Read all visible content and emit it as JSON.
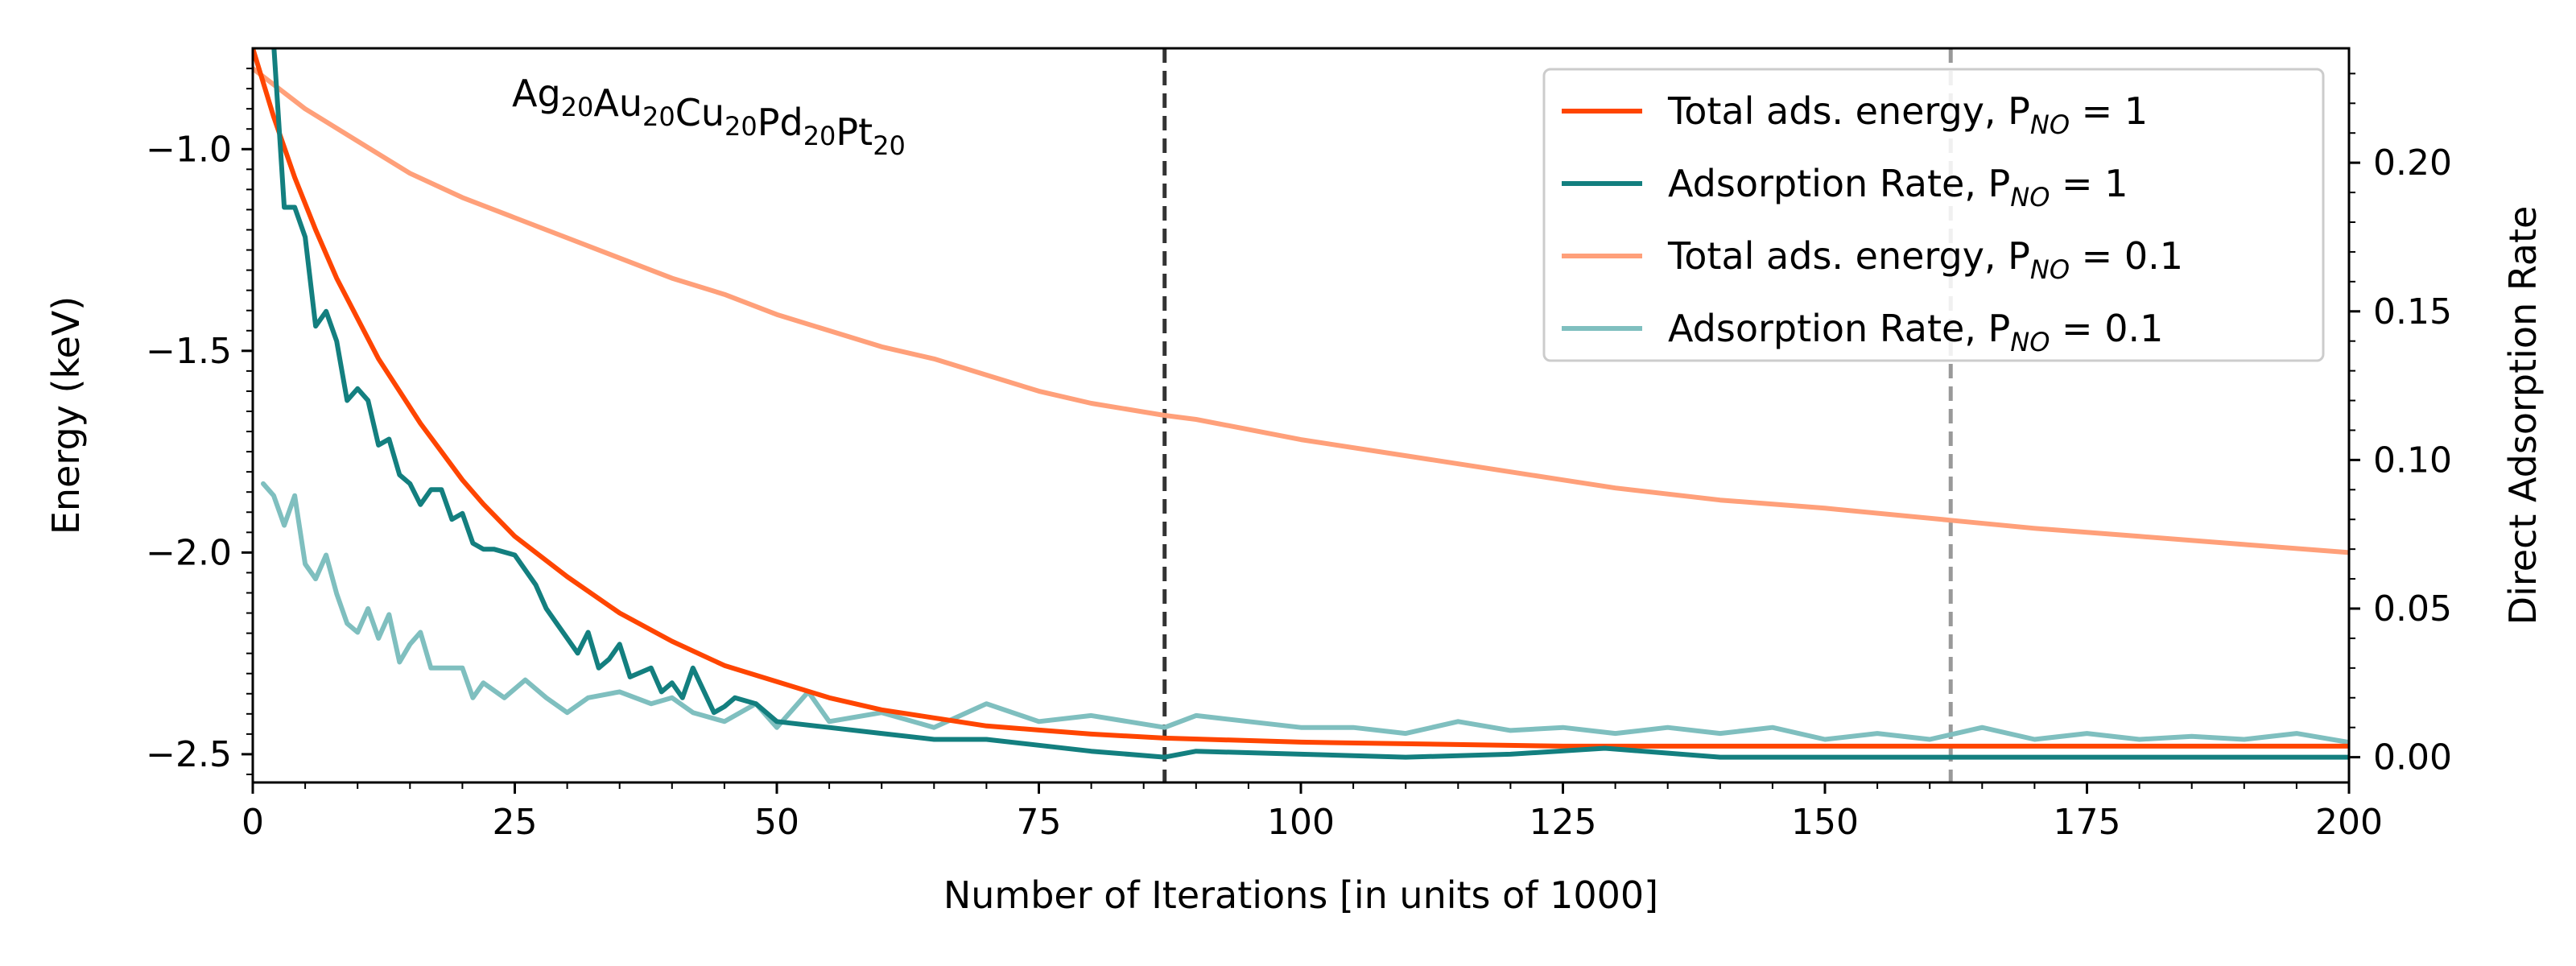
{
  "chart_data": {
    "type": "line",
    "annotation": {
      "parts": [
        [
          "Ag",
          "20"
        ],
        [
          "Au",
          "20"
        ],
        [
          "Cu",
          "20"
        ],
        [
          "Pd",
          "20"
        ],
        [
          "Pt",
          "20"
        ]
      ]
    },
    "xlabel": "Number of Iterations [in units of 1000]",
    "ylabel": "Energy (keV)",
    "y2label": "Direct Adsorption Rate",
    "xlim": [
      0,
      200
    ],
    "ylim": [
      -2.57,
      -0.75
    ],
    "y2lim": [
      -0.0085,
      0.2385
    ],
    "xticks": [
      0,
      25,
      50,
      75,
      100,
      125,
      150,
      175,
      200
    ],
    "xtick_labels": [
      "0",
      "25",
      "50",
      "75",
      "100",
      "125",
      "150",
      "175",
      "200"
    ],
    "yticks": [
      -2.5,
      -2.0,
      -1.5,
      -1.0
    ],
    "ytick_labels": [
      "−2.5",
      "−2.0",
      "−1.5",
      "−1.0"
    ],
    "y2ticks": [
      0.0,
      0.05,
      0.1,
      0.15,
      0.2
    ],
    "y2tick_labels": [
      "0.00",
      "0.05",
      "0.10",
      "0.15",
      "0.20"
    ],
    "grid": false,
    "legend_position": "top-right",
    "vlines": [
      {
        "x": 87,
        "color": "#333333"
      },
      {
        "x": 162,
        "color": "#999999"
      }
    ],
    "series": [
      {
        "legend_main": "Total ads. energy, P",
        "legend_sub": "NO",
        "legend_tail": " = 1",
        "axis": "left",
        "color": "#ff4500",
        "opacity": 1.0,
        "points": [
          [
            0,
            -0.75
          ],
          [
            2,
            -0.92
          ],
          [
            4,
            -1.07
          ],
          [
            6,
            -1.2
          ],
          [
            8,
            -1.32
          ],
          [
            10,
            -1.42
          ],
          [
            12,
            -1.52
          ],
          [
            14,
            -1.6
          ],
          [
            16,
            -1.68
          ],
          [
            18,
            -1.75
          ],
          [
            20,
            -1.82
          ],
          [
            22,
            -1.88
          ],
          [
            25,
            -1.96
          ],
          [
            28,
            -2.02
          ],
          [
            30,
            -2.06
          ],
          [
            35,
            -2.15
          ],
          [
            40,
            -2.22
          ],
          [
            45,
            -2.28
          ],
          [
            50,
            -2.32
          ],
          [
            55,
            -2.36
          ],
          [
            60,
            -2.39
          ],
          [
            65,
            -2.41
          ],
          [
            70,
            -2.43
          ],
          [
            75,
            -2.44
          ],
          [
            80,
            -2.45
          ],
          [
            87,
            -2.46
          ],
          [
            100,
            -2.47
          ],
          [
            125,
            -2.48
          ],
          [
            150,
            -2.48
          ],
          [
            175,
            -2.48
          ],
          [
            200,
            -2.48
          ]
        ]
      },
      {
        "legend_main": "Adsorption Rate, P",
        "legend_sub": "NO",
        "legend_tail": " = 1",
        "axis": "right",
        "color": "#137f7f",
        "opacity": 1.0,
        "points": [
          [
            1,
            0.24
          ],
          [
            2,
            0.24
          ],
          [
            3,
            0.185
          ],
          [
            4,
            0.185
          ],
          [
            5,
            0.175
          ],
          [
            6,
            0.145
          ],
          [
            7,
            0.15
          ],
          [
            8,
            0.14
          ],
          [
            9,
            0.12
          ],
          [
            10,
            0.124
          ],
          [
            11,
            0.12
          ],
          [
            12,
            0.105
          ],
          [
            13,
            0.107
          ],
          [
            14,
            0.095
          ],
          [
            15,
            0.092
          ],
          [
            16,
            0.085
          ],
          [
            17,
            0.09
          ],
          [
            18,
            0.09
          ],
          [
            19,
            0.08
          ],
          [
            20,
            0.082
          ],
          [
            21,
            0.072
          ],
          [
            22,
            0.07
          ],
          [
            23,
            0.07
          ],
          [
            25,
            0.068
          ],
          [
            26,
            0.063
          ],
          [
            27,
            0.058
          ],
          [
            28,
            0.05
          ],
          [
            29,
            0.045
          ],
          [
            30,
            0.04
          ],
          [
            31,
            0.035
          ],
          [
            32,
            0.042
          ],
          [
            33,
            0.03
          ],
          [
            34,
            0.033
          ],
          [
            35,
            0.038
          ],
          [
            36,
            0.027
          ],
          [
            38,
            0.03
          ],
          [
            39,
            0.022
          ],
          [
            40,
            0.025
          ],
          [
            41,
            0.02
          ],
          [
            42,
            0.03
          ],
          [
            44,
            0.015
          ],
          [
            45,
            0.017
          ],
          [
            46,
            0.02
          ],
          [
            48,
            0.018
          ],
          [
            50,
            0.012
          ],
          [
            55,
            0.01
          ],
          [
            60,
            0.008
          ],
          [
            65,
            0.006
          ],
          [
            70,
            0.006
          ],
          [
            75,
            0.004
          ],
          [
            80,
            0.002
          ],
          [
            87,
            0.0
          ],
          [
            90,
            0.002
          ],
          [
            100,
            0.001
          ],
          [
            110,
            0.0
          ],
          [
            120,
            0.001
          ],
          [
            129,
            0.003
          ],
          [
            140,
            0.0
          ],
          [
            150,
            0.0
          ],
          [
            175,
            0.0
          ],
          [
            200,
            0.0
          ]
        ]
      },
      {
        "legend_main": "Total ads. energy, P",
        "legend_sub": "NO",
        "legend_tail": " = 0.1",
        "axis": "left",
        "color": "#ffa07a",
        "opacity": 1.0,
        "points": [
          [
            0,
            -0.8
          ],
          [
            5,
            -0.9
          ],
          [
            10,
            -0.98
          ],
          [
            15,
            -1.06
          ],
          [
            20,
            -1.12
          ],
          [
            25,
            -1.17
          ],
          [
            30,
            -1.22
          ],
          [
            35,
            -1.27
          ],
          [
            40,
            -1.32
          ],
          [
            45,
            -1.36
          ],
          [
            50,
            -1.41
          ],
          [
            55,
            -1.45
          ],
          [
            60,
            -1.49
          ],
          [
            65,
            -1.52
          ],
          [
            70,
            -1.56
          ],
          [
            75,
            -1.6
          ],
          [
            80,
            -1.63
          ],
          [
            87,
            -1.66
          ],
          [
            90,
            -1.67
          ],
          [
            100,
            -1.72
          ],
          [
            110,
            -1.76
          ],
          [
            120,
            -1.8
          ],
          [
            125,
            -1.82
          ],
          [
            130,
            -1.84
          ],
          [
            140,
            -1.87
          ],
          [
            150,
            -1.89
          ],
          [
            162,
            -1.92
          ],
          [
            170,
            -1.94
          ],
          [
            180,
            -1.96
          ],
          [
            190,
            -1.98
          ],
          [
            200,
            -2.0
          ]
        ]
      },
      {
        "legend_main": "Adsorption Rate, P",
        "legend_sub": "NO",
        "legend_tail": " = 0.1",
        "axis": "right",
        "color": "#7fbfbf",
        "opacity": 1.0,
        "points": [
          [
            1,
            0.092
          ],
          [
            2,
            0.088
          ],
          [
            3,
            0.078
          ],
          [
            4,
            0.088
          ],
          [
            5,
            0.065
          ],
          [
            6,
            0.06
          ],
          [
            7,
            0.068
          ],
          [
            8,
            0.055
          ],
          [
            9,
            0.045
          ],
          [
            10,
            0.042
          ],
          [
            11,
            0.05
          ],
          [
            12,
            0.04
          ],
          [
            13,
            0.048
          ],
          [
            14,
            0.032
          ],
          [
            15,
            0.038
          ],
          [
            16,
            0.042
          ],
          [
            17,
            0.03
          ],
          [
            18,
            0.03
          ],
          [
            20,
            0.03
          ],
          [
            21,
            0.02
          ],
          [
            22,
            0.025
          ],
          [
            24,
            0.02
          ],
          [
            26,
            0.026
          ],
          [
            28,
            0.02
          ],
          [
            30,
            0.015
          ],
          [
            32,
            0.02
          ],
          [
            35,
            0.022
          ],
          [
            38,
            0.018
          ],
          [
            40,
            0.02
          ],
          [
            42,
            0.015
          ],
          [
            45,
            0.012
          ],
          [
            48,
            0.018
          ],
          [
            50,
            0.01
          ],
          [
            53,
            0.022
          ],
          [
            55,
            0.012
          ],
          [
            60,
            0.015
          ],
          [
            65,
            0.01
          ],
          [
            70,
            0.018
          ],
          [
            75,
            0.012
          ],
          [
            80,
            0.014
          ],
          [
            87,
            0.01
          ],
          [
            90,
            0.014
          ],
          [
            95,
            0.012
          ],
          [
            100,
            0.01
          ],
          [
            105,
            0.01
          ],
          [
            110,
            0.008
          ],
          [
            115,
            0.012
          ],
          [
            120,
            0.009
          ],
          [
            125,
            0.01
          ],
          [
            130,
            0.008
          ],
          [
            135,
            0.01
          ],
          [
            140,
            0.008
          ],
          [
            145,
            0.01
          ],
          [
            150,
            0.006
          ],
          [
            155,
            0.008
          ],
          [
            160,
            0.006
          ],
          [
            165,
            0.01
          ],
          [
            170,
            0.006
          ],
          [
            175,
            0.008
          ],
          [
            180,
            0.006
          ],
          [
            185,
            0.007
          ],
          [
            190,
            0.006
          ],
          [
            195,
            0.008
          ],
          [
            200,
            0.005
          ]
        ]
      }
    ]
  }
}
